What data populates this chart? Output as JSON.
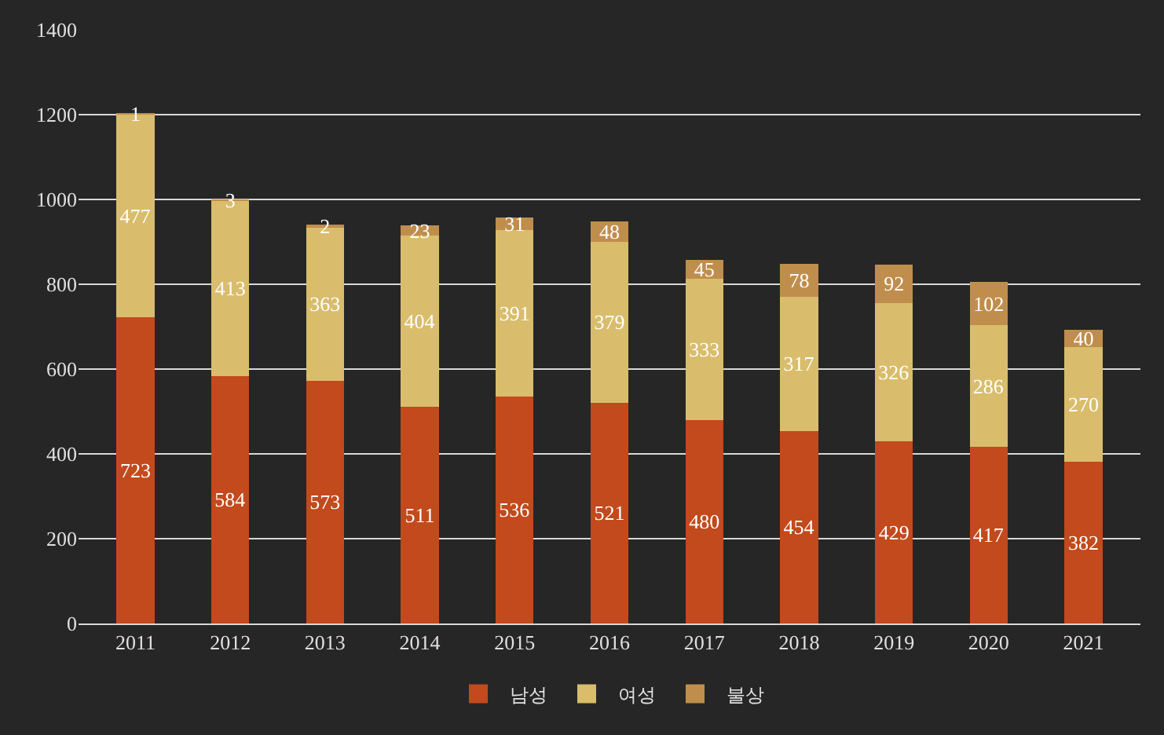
{
  "chart_data": {
    "type": "bar",
    "stacked": true,
    "categories": [
      "2011",
      "2012",
      "2013",
      "2014",
      "2015",
      "2016",
      "2017",
      "2018",
      "2019",
      "2020",
      "2021"
    ],
    "series": [
      {
        "name": "남성",
        "color": "#c24a1c",
        "values": [
          723,
          584,
          573,
          511,
          536,
          521,
          480,
          454,
          429,
          417,
          382
        ]
      },
      {
        "name": "여성",
        "color": "#d9bd6c",
        "values": [
          477,
          413,
          363,
          404,
          391,
          379,
          333,
          317,
          326,
          286,
          270
        ]
      },
      {
        "name": "불상",
        "color": "#c08e4c",
        "values": [
          1,
          3,
          2,
          23,
          31,
          48,
          45,
          78,
          92,
          102,
          40
        ]
      }
    ],
    "ylim": [
      0,
      1400
    ],
    "yticks": [
      0,
      200,
      400,
      600,
      800,
      1000,
      1200,
      1400
    ],
    "grid": "y",
    "legend": "bottom",
    "data_labels": true
  }
}
